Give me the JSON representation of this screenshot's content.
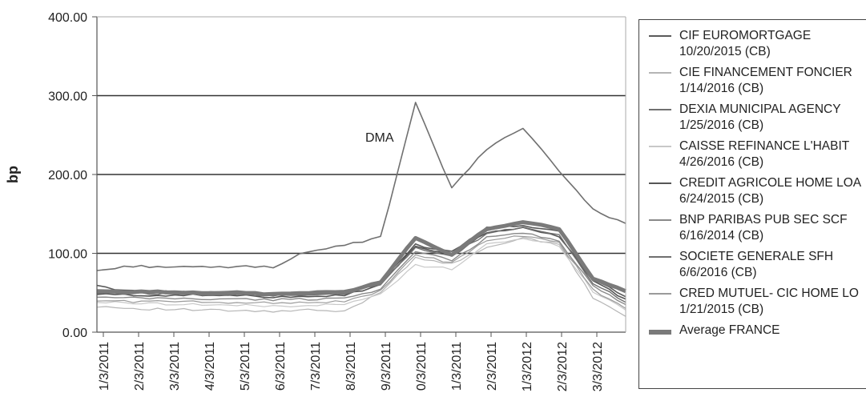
{
  "chart_data": {
    "type": "line",
    "ylabel": "bp",
    "ylim": [
      0,
      400
    ],
    "yticks": [
      "0.00",
      "100.00",
      "200.00",
      "300.00",
      "400.00"
    ],
    "x_ticks": [
      "1/3/2011",
      "2/3/2011",
      "3/3/2011",
      "4/3/2011",
      "5/3/2011",
      "6/3/2011",
      "7/3/2011",
      "8/3/2011",
      "9/3/2011",
      "0/3/2011",
      "1/3/2011",
      "2/3/2011",
      "1/3/2012",
      "2/3/2012",
      "3/3/2012"
    ],
    "grid": "horizontal at 100, 200, 300",
    "legend_position": "right",
    "annotations": [
      {
        "text": "DMA",
        "x": "9/2011",
        "y": 292
      }
    ],
    "x": [
      "2011-01-03",
      "2011-02-03",
      "2011-03-03",
      "2011-04-03",
      "2011-05-03",
      "2011-06-03",
      "2011-07-03",
      "2011-08-03",
      "2011-09-03",
      "2011-10-03",
      "2011-11-03",
      "2011-12-03",
      "2012-01-03",
      "2012-02-03",
      "2012-03-03",
      "2012-03-31"
    ],
    "series": [
      {
        "name": "CIF EUROMORTGAGE 10/20/2015 (CB)",
        "color": "#5a5a5a",
        "width": 1.6,
        "values": [
          58,
          52,
          51,
          51,
          50,
          47,
          49,
          50,
          64,
          111,
          102,
          133,
          136,
          128,
          68,
          45
        ]
      },
      {
        "name": "CIE FINANCEMENT FONCIER 1/14/2016 (CB)",
        "color": "#b5b5b5",
        "width": 1.2,
        "values": [
          33,
          30,
          29,
          28,
          27,
          26,
          28,
          26,
          51,
          95,
          86,
          108,
          119,
          111,
          44,
          20
        ]
      },
      {
        "name": "DEXIA MUNICIPAL AGENCY 1/25/2016 (CB)",
        "color": "#707070",
        "width": 1.6,
        "values": [
          78,
          84,
          83,
          82,
          83,
          83,
          103,
          110,
          120,
          290,
          183,
          232,
          260,
          205,
          155,
          138
        ]
      },
      {
        "name": "CAISSE REFINANCE L'HABIT 4/26/2016 (CB)",
        "color": "#c8c8c8",
        "width": 1.2,
        "values": [
          38,
          37,
          36,
          35,
          34,
          33,
          34,
          35,
          48,
          85,
          80,
          112,
          118,
          110,
          52,
          28
        ]
      },
      {
        "name": "CREDIT AGRICOLE HOME LOA 6/24/2015 (CB)",
        "color": "#555555",
        "width": 1.6,
        "values": [
          48,
          47,
          47,
          47,
          46,
          45,
          46,
          47,
          60,
          110,
          97,
          127,
          132,
          122,
          65,
          42
        ]
      },
      {
        "name": "BNP PARIBAS PUB SEC SCF 6/16/2014 (CB)",
        "color": "#8a8a8a",
        "width": 1.4,
        "values": [
          44,
          43,
          43,
          42,
          42,
          41,
          42,
          43,
          55,
          102,
          91,
          120,
          126,
          116,
          58,
          35
        ]
      },
      {
        "name": "SOCIETE GENERALE SFH 6/6/2016 (CB)",
        "color": "#6f6f6f",
        "width": 1.4,
        "values": [
          50,
          49,
          49,
          48,
          48,
          47,
          48,
          49,
          61,
          106,
          96,
          125,
          133,
          124,
          62,
          38
        ]
      },
      {
        "name": "CRED MUTUEL- CIC HOME LO 1/21/2015 (CB)",
        "color": "#9a9a9a",
        "width": 1.2,
        "values": [
          40,
          39,
          39,
          38,
          38,
          37,
          38,
          39,
          52,
          98,
          88,
          116,
          122,
          113,
          54,
          30
        ]
      },
      {
        "name": "Average FRANCE",
        "color": "#7a7a7a",
        "width": 5,
        "values": [
          52,
          51,
          51,
          50,
          50,
          48,
          50,
          51,
          63,
          120,
          98,
          131,
          140,
          131,
          68,
          52
        ]
      }
    ]
  }
}
